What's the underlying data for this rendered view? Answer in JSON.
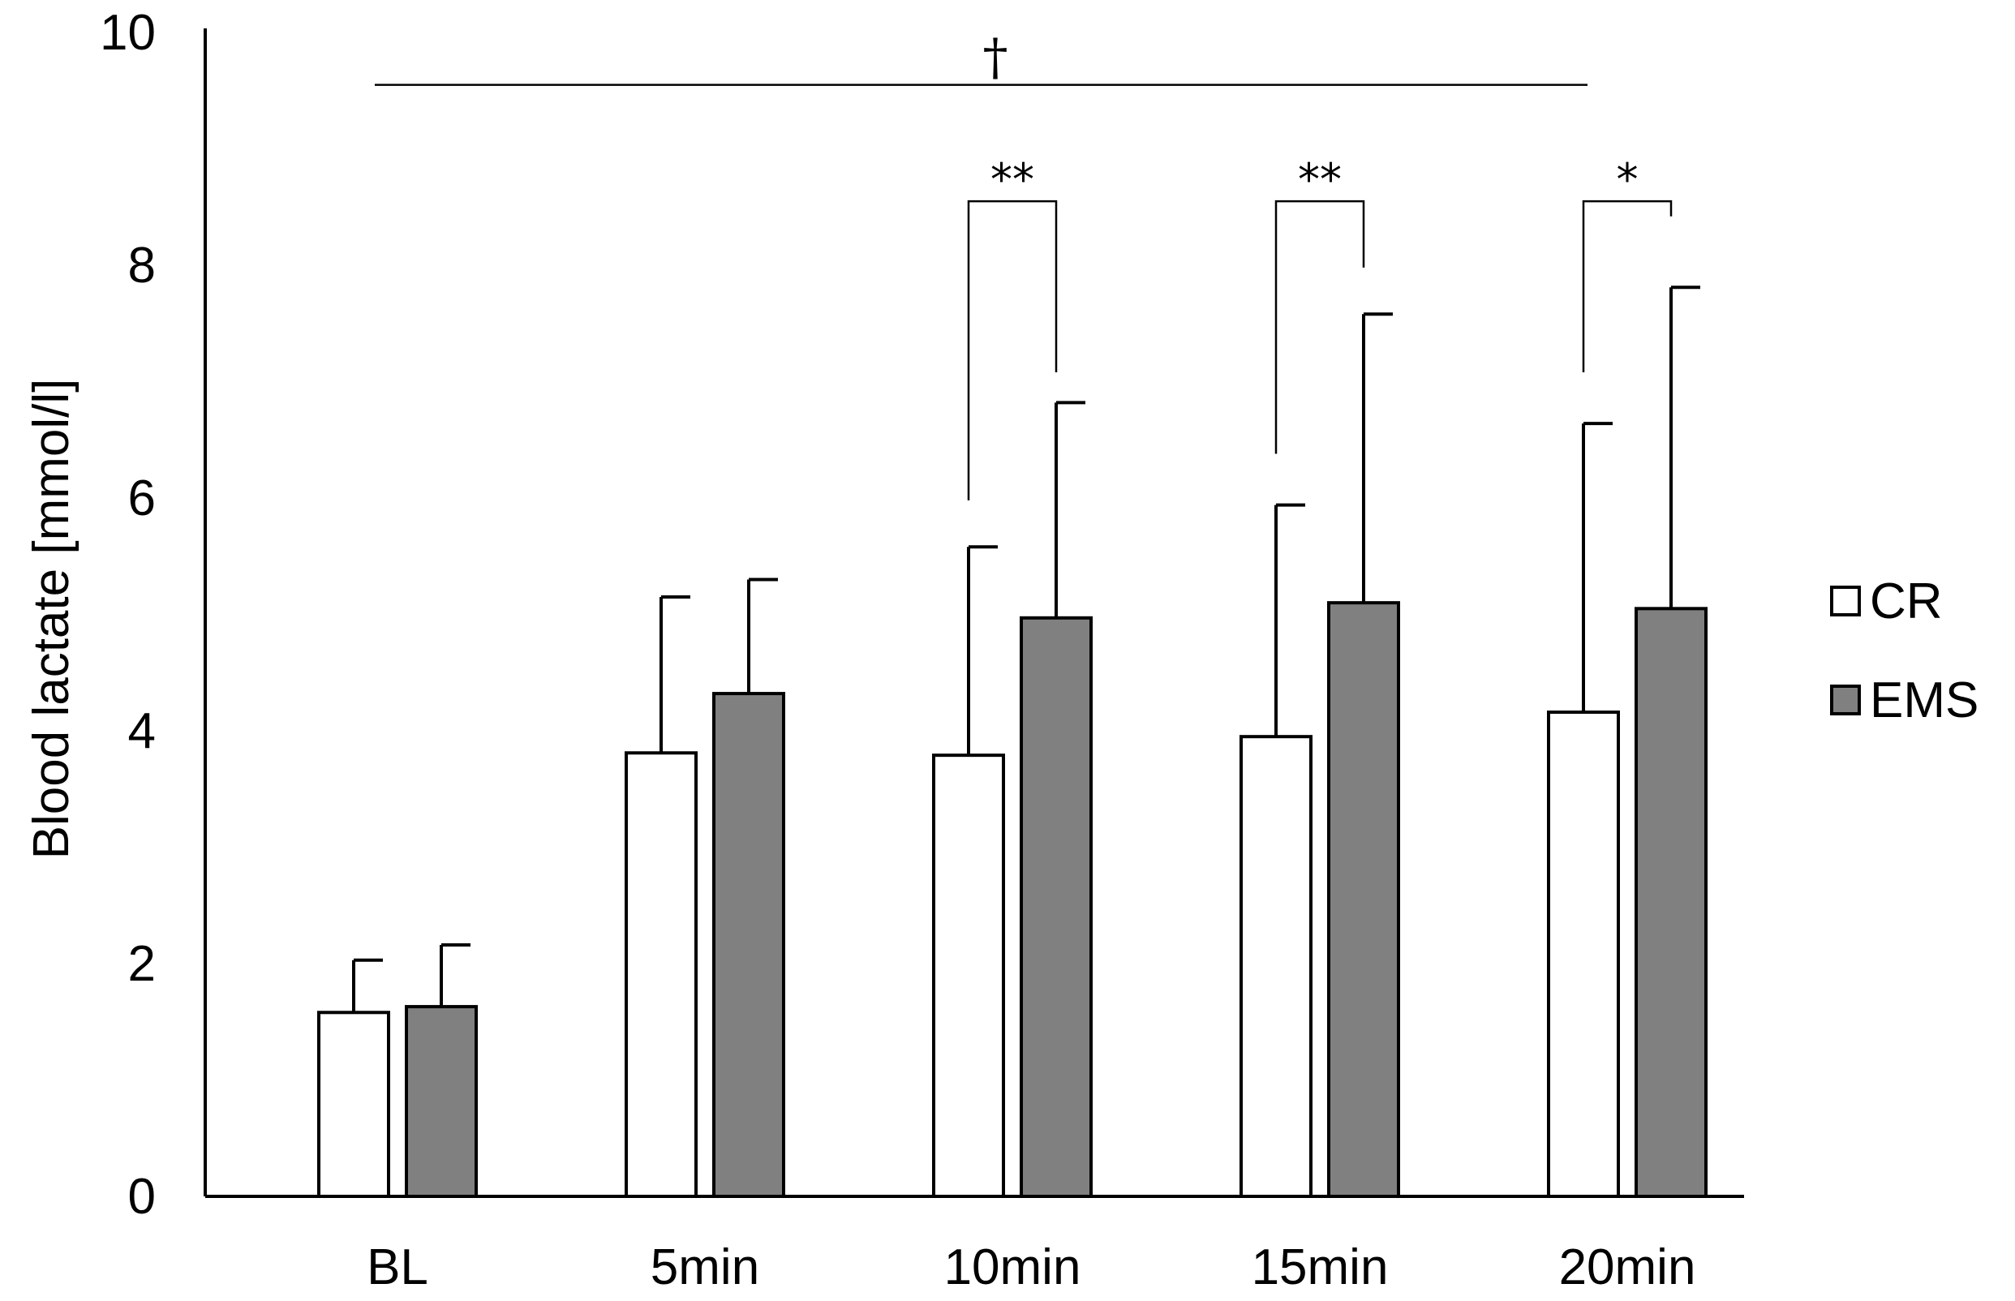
{
  "chart_data": {
    "type": "bar",
    "title": "",
    "xlabel": "",
    "ylabel": "Blood lactate [mmol/l]",
    "ylim": [
      0,
      10
    ],
    "yticks": [
      0,
      2,
      4,
      6,
      8,
      10
    ],
    "categories": [
      "BL",
      "5min",
      "10min",
      "15min",
      "20min"
    ],
    "series": [
      {
        "name": "CR",
        "color": "#ffffff",
        "values": [
          1.58,
          3.81,
          3.79,
          3.95,
          4.16
        ],
        "error_upper": [
          2.03,
          5.15,
          5.58,
          5.94,
          6.64
        ]
      },
      {
        "name": "EMS",
        "color": "#808080",
        "values": [
          1.63,
          4.32,
          4.97,
          5.1,
          5.05
        ],
        "error_upper": [
          2.16,
          5.3,
          6.82,
          7.58,
          7.81
        ]
      }
    ],
    "legend": {
      "position": "right",
      "entries": [
        "CR",
        "EMS"
      ]
    },
    "annotations": {
      "overall": {
        "label": "†",
        "from_category": "BL",
        "to_category": "20min",
        "level": 9.55
      },
      "brackets": [
        {
          "category": "10min",
          "label": "**",
          "top": 8.55,
          "left_end": 5.98,
          "right_end": 7.08
        },
        {
          "category": "15min",
          "label": "**",
          "top": 8.55,
          "left_end": 6.38,
          "right_end": 7.98
        },
        {
          "category": "20min",
          "label": "*",
          "top": 8.55,
          "left_end": 7.08,
          "right_end": 8.42
        }
      ]
    }
  }
}
